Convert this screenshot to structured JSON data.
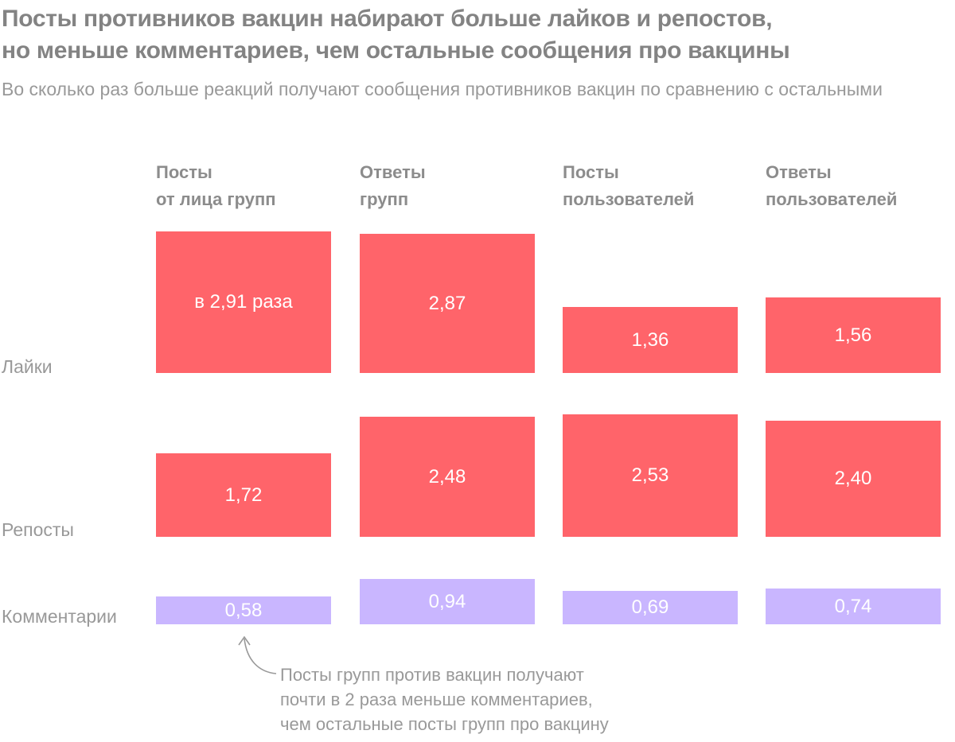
{
  "title_lines": [
    "Посты противников вакцин набирают больше лайков и репостов,",
    "но меньше комментариев, чем остальные сообщения про вакцины"
  ],
  "subtitle": "Во сколько раз больше реакций получают сообщения противников вакцин по сравнению с остальными",
  "annotation_lines": [
    "Посты групп против вакцин получают",
    "почти в 2 раза меньше комментариев,",
    "чем остальные посты групп про вакцину"
  ],
  "colors": {
    "likes": "#ff646a",
    "reposts": "#ff646a",
    "comments": "#c9b6ff"
  },
  "chart_data": {
    "type": "bar",
    "title": "Посты противников вакцин набирают больше лайков и репостов, но меньше комментариев, чем остальные сообщения про вакцины",
    "categories": [
      [
        "Посты",
        "от лица групп"
      ],
      [
        "Ответы",
        "групп"
      ],
      [
        "Посты",
        "пользователей"
      ],
      [
        "Ответы",
        "пользователей"
      ]
    ],
    "series": [
      {
        "name": "Лайки",
        "values": [
          2.91,
          2.87,
          1.36,
          1.56
        ],
        "labels": [
          "в 2,91 раза",
          "2,87",
          "1,36",
          "1,56"
        ]
      },
      {
        "name": "Репосты",
        "values": [
          1.72,
          2.48,
          2.53,
          2.4
        ],
        "labels": [
          "1,72",
          "2,48",
          "2,53",
          "2,40"
        ]
      },
      {
        "name": "Комментарии",
        "values": [
          0.58,
          0.94,
          0.69,
          0.74
        ],
        "labels": [
          "0,58",
          "0,94",
          "0,69",
          "0,74"
        ]
      }
    ]
  }
}
